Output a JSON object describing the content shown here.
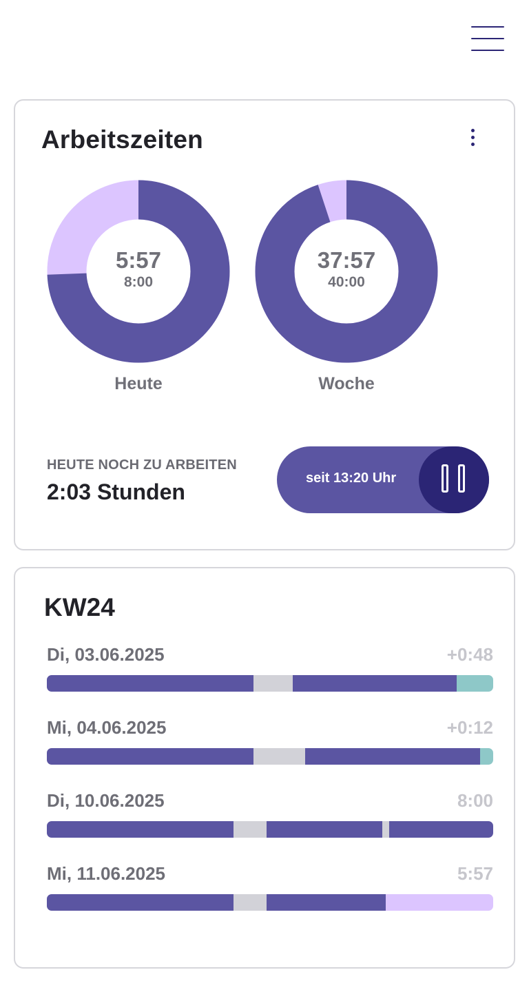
{
  "colors": {
    "work": "#5b55a2",
    "remaining": "#dcc5ff",
    "break": "#d2d2d8",
    "overtime": "#8ec8c8",
    "accent_dark": "#2b2575"
  },
  "header": {
    "menu_icon": "hamburger-menu-icon"
  },
  "work_times": {
    "title": "Arbeitszeiten",
    "more_icon": "more-vertical-icon",
    "today": {
      "value": "5:57",
      "target": "8:00",
      "label": "Heute",
      "progress": 0.744
    },
    "week": {
      "value": "37:57",
      "target": "40:00",
      "label": "Woche",
      "progress": 0.949
    },
    "remaining_caption": "HEUTE NOCH ZU ARBEITEN",
    "remaining_value": "2:03 Stunden",
    "timer_text": "seit 13:20 Uhr",
    "pause_icon": "pause-icon"
  },
  "week_list": {
    "title": "KW24",
    "days": [
      {
        "date": "Di, 03.06.2025",
        "total": "+0:48",
        "segments": [
          {
            "type": "work",
            "fraction": 0.463
          },
          {
            "type": "break",
            "fraction": 0.088
          },
          {
            "type": "work",
            "fraction": 0.367
          },
          {
            "type": "overtime",
            "fraction": 0.082
          }
        ]
      },
      {
        "date": "Mi, 04.06.2025",
        "total": "+0:12",
        "segments": [
          {
            "type": "work",
            "fraction": 0.463
          },
          {
            "type": "break",
            "fraction": 0.116
          },
          {
            "type": "work",
            "fraction": 0.392
          },
          {
            "type": "overtime",
            "fraction": 0.029
          }
        ]
      },
      {
        "date": "Di, 10.06.2025",
        "total": "8:00",
        "segments": [
          {
            "type": "work",
            "fraction": 0.418
          },
          {
            "type": "break",
            "fraction": 0.075
          },
          {
            "type": "work",
            "fraction": 0.259
          },
          {
            "type": "break",
            "fraction": 0.015
          },
          {
            "type": "work",
            "fraction": 0.233
          }
        ]
      },
      {
        "date": "Mi, 11.06.2025",
        "total": "5:57",
        "segments": [
          {
            "type": "work",
            "fraction": 0.418
          },
          {
            "type": "break",
            "fraction": 0.075
          },
          {
            "type": "work",
            "fraction": 0.267
          },
          {
            "type": "remaining",
            "fraction": 0.24
          }
        ]
      }
    ]
  }
}
